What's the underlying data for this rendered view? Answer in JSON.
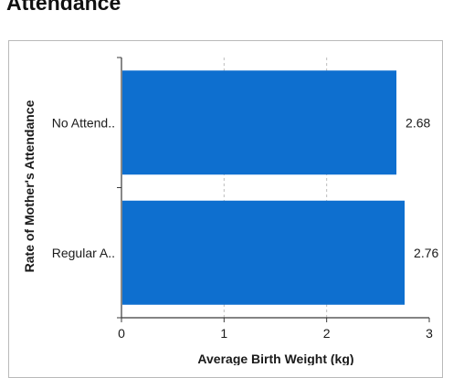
{
  "page": {
    "title": "Attendance"
  },
  "chart_data": {
    "type": "bar",
    "orientation": "horizontal",
    "categories": [
      "No Attend..",
      "Regular A.."
    ],
    "values": [
      2.68,
      2.76
    ],
    "value_labels": [
      "2.68",
      "2.76"
    ],
    "xlabel": "Average Birth Weight (kg)",
    "ylabel": "Rate of Mother's Attendance",
    "xlim": [
      0,
      3
    ],
    "xticks": [
      0,
      1,
      2,
      3
    ],
    "xtick_labels": [
      "0",
      "1",
      "2",
      "3"
    ],
    "grid": "vertical dashed",
    "bar_color": "#0e6fcf",
    "legend": "none"
  }
}
